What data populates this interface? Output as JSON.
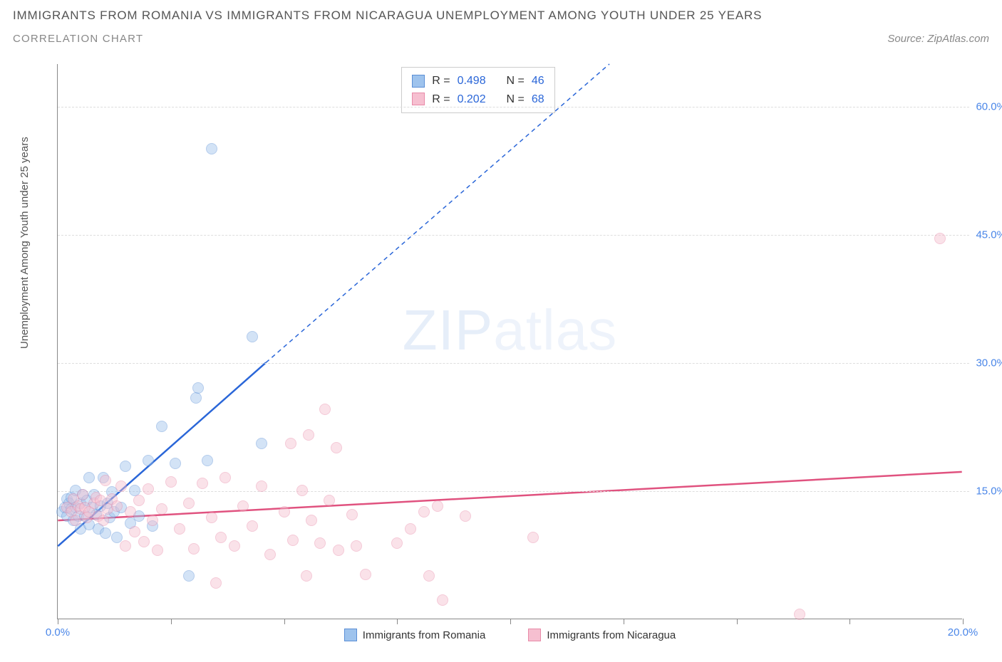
{
  "header": {
    "title_line1": "Immigrants from Romania vs Immigrants from Nicaragua Unemployment Among Youth under 25 years",
    "title_line2": "Correlation Chart",
    "source_prefix": "Source: ",
    "source_name": "ZipAtlas.com"
  },
  "y_axis_label": "Unemployment Among Youth under 25 years",
  "watermark": {
    "part1": "ZIP",
    "part2": "atlas"
  },
  "chart": {
    "type": "scatter",
    "background_color": "#ffffff",
    "grid_color": "#dddddd",
    "axis_color": "#888888",
    "tick_label_color": "#4a86e8",
    "xlim": [
      0,
      20
    ],
    "ylim": [
      0,
      65
    ],
    "x_ticks": [
      0,
      2.5,
      5,
      7.5,
      10,
      12.5,
      15,
      17.5,
      20
    ],
    "x_tick_labels": {
      "0": "0.0%",
      "20": "20.0%"
    },
    "y_ticks": [
      15,
      30,
      45,
      60
    ],
    "y_tick_labels": {
      "15": "15.0%",
      "30": "30.0%",
      "45": "45.0%",
      "60": "60.0%"
    },
    "marker_radius": 8,
    "marker_opacity": 0.45,
    "series": [
      {
        "name": "Immigrants from Romania",
        "fill_color": "#9ec3ed",
        "stroke_color": "#5b8fd6",
        "line_color": "#2a66d8",
        "R": "0.498",
        "N": "46",
        "trend_solid": {
          "x1": 0,
          "y1": 8.5,
          "x2": 4.6,
          "y2": 30
        },
        "trend_dashed": {
          "x1": 4.6,
          "y1": 30,
          "x2": 12.2,
          "y2": 65
        },
        "points": [
          [
            0.1,
            12.5
          ],
          [
            0.15,
            13
          ],
          [
            0.2,
            12
          ],
          [
            0.2,
            14
          ],
          [
            0.25,
            13.5
          ],
          [
            0.3,
            12.8
          ],
          [
            0.3,
            14.2
          ],
          [
            0.35,
            11.5
          ],
          [
            0.4,
            13
          ],
          [
            0.4,
            15
          ],
          [
            0.45,
            12
          ],
          [
            0.5,
            13.5
          ],
          [
            0.5,
            10.5
          ],
          [
            0.55,
            14.5
          ],
          [
            0.6,
            12
          ],
          [
            0.65,
            13.8
          ],
          [
            0.7,
            11
          ],
          [
            0.7,
            16.5
          ],
          [
            0.75,
            13
          ],
          [
            0.8,
            14.5
          ],
          [
            0.85,
            12.2
          ],
          [
            0.9,
            10.5
          ],
          [
            0.95,
            13.2
          ],
          [
            1.0,
            16.5
          ],
          [
            1.05,
            10
          ],
          [
            1.1,
            13.5
          ],
          [
            1.15,
            11.8
          ],
          [
            1.2,
            14.8
          ],
          [
            1.25,
            12.5
          ],
          [
            1.3,
            9.5
          ],
          [
            1.4,
            13
          ],
          [
            1.5,
            17.8
          ],
          [
            1.6,
            11.2
          ],
          [
            1.7,
            15
          ],
          [
            1.8,
            12
          ],
          [
            2.0,
            18.5
          ],
          [
            2.1,
            10.8
          ],
          [
            2.3,
            22.5
          ],
          [
            2.6,
            18.2
          ],
          [
            2.9,
            5.0
          ],
          [
            3.05,
            25.8
          ],
          [
            3.1,
            27.0
          ],
          [
            3.3,
            18.5
          ],
          [
            3.4,
            55.0
          ],
          [
            4.3,
            33.0
          ],
          [
            4.5,
            20.5
          ]
        ]
      },
      {
        "name": "Immigrants from Nicaragua",
        "fill_color": "#f6bfd0",
        "stroke_color": "#e88aa8",
        "line_color": "#e0527f",
        "R": "0.202",
        "N": "68",
        "trend_solid": {
          "x1": 0,
          "y1": 11.5,
          "x2": 20,
          "y2": 17.2
        },
        "trend_dashed": null,
        "points": [
          [
            0.2,
            13
          ],
          [
            0.3,
            12.5
          ],
          [
            0.35,
            14
          ],
          [
            0.4,
            11.5
          ],
          [
            0.45,
            13.2
          ],
          [
            0.5,
            12.8
          ],
          [
            0.55,
            14.5
          ],
          [
            0.6,
            13
          ],
          [
            0.65,
            11.8
          ],
          [
            0.7,
            12.5
          ],
          [
            0.8,
            13.5
          ],
          [
            0.85,
            14.2
          ],
          [
            0.9,
            12
          ],
          [
            0.95,
            13.8
          ],
          [
            1.0,
            11.5
          ],
          [
            1.05,
            16.2
          ],
          [
            1.1,
            12.8
          ],
          [
            1.2,
            14
          ],
          [
            1.3,
            13.2
          ],
          [
            1.4,
            15.5
          ],
          [
            1.5,
            8.5
          ],
          [
            1.6,
            12.5
          ],
          [
            1.7,
            10.2
          ],
          [
            1.8,
            13.8
          ],
          [
            1.9,
            9.0
          ],
          [
            2.0,
            15.2
          ],
          [
            2.1,
            11.5
          ],
          [
            2.2,
            8.0
          ],
          [
            2.3,
            12.8
          ],
          [
            2.5,
            16
          ],
          [
            2.7,
            10.5
          ],
          [
            2.9,
            13.5
          ],
          [
            3.0,
            8.2
          ],
          [
            3.2,
            15.8
          ],
          [
            3.4,
            11.8
          ],
          [
            3.5,
            4.2
          ],
          [
            3.6,
            9.5
          ],
          [
            3.7,
            16.5
          ],
          [
            3.9,
            8.5
          ],
          [
            4.1,
            13.2
          ],
          [
            4.3,
            10.8
          ],
          [
            4.5,
            15.5
          ],
          [
            4.7,
            7.5
          ],
          [
            5.0,
            12.5
          ],
          [
            5.15,
            20.5
          ],
          [
            5.2,
            9.2
          ],
          [
            5.4,
            15
          ],
          [
            5.5,
            5.0
          ],
          [
            5.55,
            21.5
          ],
          [
            5.6,
            11.5
          ],
          [
            5.8,
            8.8
          ],
          [
            5.9,
            24.5
          ],
          [
            6.0,
            13.8
          ],
          [
            6.15,
            20.0
          ],
          [
            6.2,
            8.0
          ],
          [
            6.5,
            12.2
          ],
          [
            6.6,
            8.5
          ],
          [
            6.8,
            5.2
          ],
          [
            7.5,
            8.8
          ],
          [
            7.8,
            10.5
          ],
          [
            8.1,
            12.5
          ],
          [
            8.2,
            5.0
          ],
          [
            8.4,
            13.2
          ],
          [
            8.5,
            2.2
          ],
          [
            9.0,
            12.0
          ],
          [
            10.5,
            9.5
          ],
          [
            16.4,
            0.5
          ],
          [
            19.5,
            44.5
          ]
        ]
      }
    ]
  },
  "stat_box": {
    "R_label": "R =",
    "N_label": "N ="
  },
  "bottom_legend": {
    "series1": "Immigrants from Romania",
    "series2": "Immigrants from Nicaragua"
  }
}
